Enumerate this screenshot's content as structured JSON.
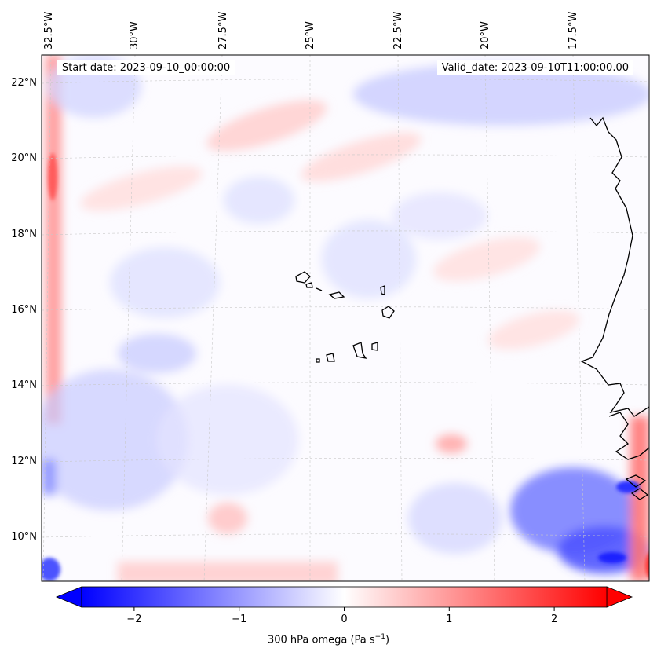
{
  "header": {
    "start_date": "Start date: 2023-09-10_00:00:00",
    "valid_date": "Valid_date: 2023-09-10T11:00:00.00"
  },
  "map": {
    "lon_labels": [
      "32.5°W",
      "30°W",
      "27.5°W",
      "25°W",
      "22.5°W",
      "20°W",
      "17.5°W"
    ],
    "lat_labels": [
      "22°N",
      "20°N",
      "18°N",
      "16°N",
      "14°N",
      "12°N",
      "10°N"
    ],
    "colors": {
      "negative": "#0000ff",
      "zero": "#ffffff",
      "positive": "#ff0000",
      "coastline": "#000000"
    }
  },
  "colorbar": {
    "ticks": [
      "−2",
      "−1",
      "0",
      "1",
      "2"
    ],
    "range": [
      -2.5,
      2.5
    ],
    "label_main": "300 hPa omega (Pa s",
    "label_exp": "−1",
    "label_end": ")"
  }
}
